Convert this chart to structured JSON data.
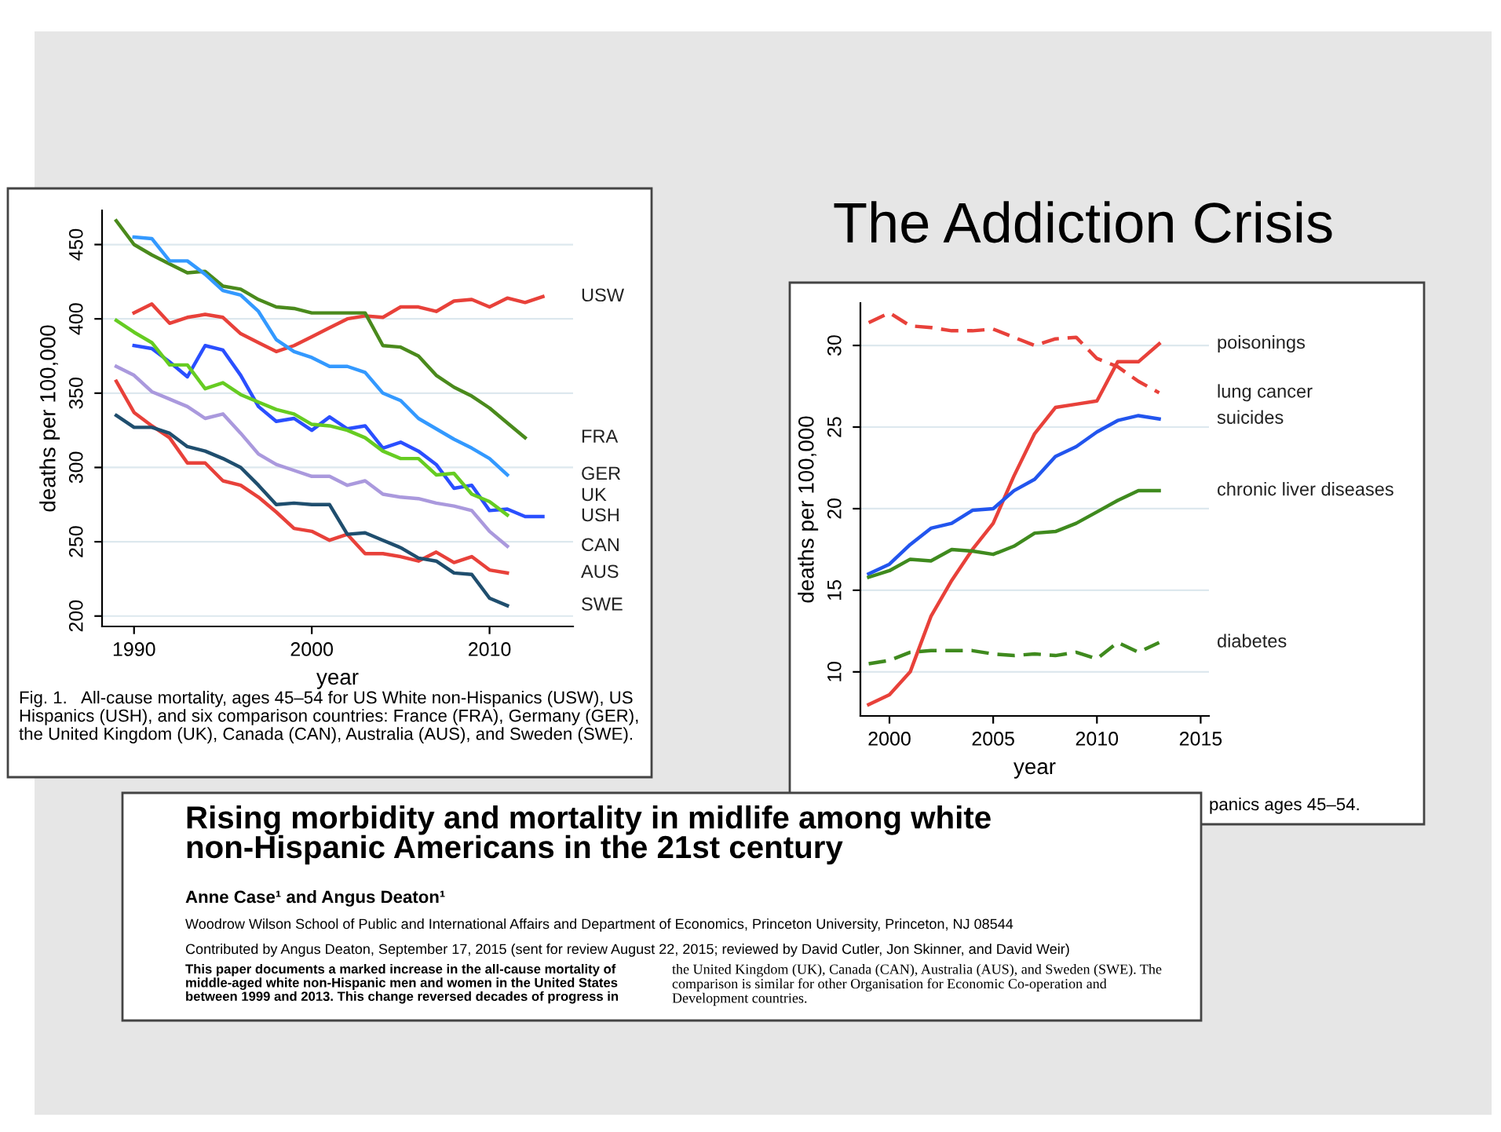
{
  "chart_data": [
    {
      "type": "line",
      "xlabel": "year",
      "ylabel": "deaths per 100,000",
      "xlim": [
        1988.2,
        2014.7
      ],
      "ylim": [
        193,
        473
      ],
      "xticks": [
        1990,
        2000,
        2010
      ],
      "yticks": [
        200,
        250,
        300,
        350,
        400,
        450
      ],
      "grid": "y",
      "legend": false,
      "marker": "none",
      "annotations": [
        "Fig. 1.   All-cause mortality, ages 45–54 for US White non-Hispanics (USW), US Hispanics (USH), and six comparison countries: France (FRA), Germany (GER), the United Kingdom (UK), Canada (CAN), Australia (AUS), and Sweden (SWE)."
      ],
      "series": [
        {
          "name": "USW",
          "color": "#e8413a",
          "x": [
            1990,
            1991,
            1992,
            1993,
            1994,
            1995,
            1996,
            1997,
            1998,
            1999,
            2000,
            2001,
            2002,
            2003,
            2004,
            2005,
            2006,
            2007,
            2008,
            2009,
            2010,
            2011,
            2012,
            2013
          ],
          "values": [
            404,
            410,
            397,
            401,
            403,
            401,
            390,
            384,
            378,
            382,
            388,
            394,
            400,
            402,
            401,
            408,
            408,
            405,
            412,
            413,
            408,
            414,
            411,
            415
          ]
        },
        {
          "name": "FRA",
          "color": "#4a8a1c",
          "x": [
            1989,
            1990,
            1991,
            1992,
            1993,
            1994,
            1995,
            1996,
            1997,
            1998,
            1999,
            2000,
            2001,
            2002,
            2003,
            2004,
            2005,
            2006,
            2007,
            2008,
            2009,
            2010,
            2011,
            2012
          ],
          "values": [
            466,
            450,
            443,
            437,
            431,
            432,
            422,
            420,
            413,
            408,
            407,
            404,
            404,
            404,
            404,
            382,
            381,
            375,
            362,
            354,
            348,
            340,
            330,
            320
          ]
        },
        {
          "name": "GER",
          "color": "#3399ff",
          "x": [
            1990,
            1991,
            1992,
            1993,
            1994,
            1995,
            1996,
            1997,
            1998,
            1999,
            2000,
            2001,
            2002,
            2003,
            2004,
            2005,
            2006,
            2007,
            2008,
            2009,
            2010,
            2011
          ],
          "values": [
            455,
            454,
            439,
            439,
            430,
            419,
            416,
            405,
            386,
            378,
            374,
            368,
            368,
            364,
            350,
            345,
            333,
            326,
            319,
            313,
            306,
            295
          ]
        },
        {
          "name": "USH",
          "color": "#2a4fff",
          "x": [
            1990,
            1991,
            1992,
            1993,
            1994,
            1995,
            1996,
            1997,
            1998,
            1999,
            2000,
            2001,
            2002,
            2003,
            2004,
            2005,
            2006,
            2007,
            2008,
            2009,
            2010,
            2011,
            2012,
            2013
          ],
          "values": [
            382,
            380,
            371,
            361,
            382,
            379,
            362,
            341,
            331,
            333,
            325,
            334,
            326,
            328,
            313,
            317,
            311,
            302,
            286,
            288,
            271,
            272,
            267,
            267
          ]
        },
        {
          "name": "UK",
          "color": "#66cc22",
          "x": [
            1989,
            1990,
            1991,
            1992,
            1993,
            1994,
            1995,
            1996,
            1997,
            1998,
            1999,
            2000,
            2001,
            2002,
            2003,
            2004,
            2005,
            2006,
            2007,
            2008,
            2009,
            2010,
            2011
          ],
          "values": [
            399,
            391,
            384,
            369,
            369,
            353,
            357,
            349,
            344,
            339,
            336,
            329,
            328,
            325,
            320,
            311,
            306,
            306,
            295,
            296,
            282,
            277,
            268
          ]
        },
        {
          "name": "CAN",
          "color": "#aa99dd",
          "x": [
            1989,
            1990,
            1991,
            1992,
            1993,
            1994,
            1995,
            1996,
            1997,
            1998,
            1999,
            2000,
            2001,
            2002,
            2003,
            2004,
            2005,
            2006,
            2007,
            2008,
            2009,
            2010,
            2011
          ],
          "values": [
            368,
            362,
            351,
            346,
            341,
            333,
            336,
            323,
            309,
            302,
            298,
            294,
            294,
            288,
            291,
            282,
            280,
            279,
            276,
            274,
            271,
            257,
            247
          ]
        },
        {
          "name": "AUS",
          "color": "#e8413a",
          "x": [
            1989,
            1990,
            1991,
            1992,
            1993,
            1994,
            1995,
            1996,
            1997,
            1998,
            1999,
            2000,
            2001,
            2002,
            2003,
            2004,
            2005,
            2006,
            2007,
            2008,
            2009,
            2010,
            2011
          ],
          "values": [
            358,
            337,
            328,
            320,
            303,
            303,
            291,
            288,
            280,
            270,
            259,
            257,
            251,
            255,
            242,
            242,
            240,
            237,
            243,
            236,
            240,
            231,
            229
          ]
        },
        {
          "name": "SWE",
          "color": "#1f4e6e",
          "x": [
            1989,
            1990,
            1991,
            1992,
            1993,
            1994,
            1995,
            1996,
            1997,
            1998,
            1999,
            2000,
            2001,
            2002,
            2003,
            2004,
            2005,
            2006,
            2007,
            2008,
            2009,
            2010,
            2011
          ],
          "values": [
            335,
            327,
            327,
            323,
            314,
            311,
            306,
            300,
            288,
            275,
            276,
            275,
            275,
            255,
            256,
            251,
            246,
            239,
            237,
            229,
            228,
            212,
            207
          ]
        }
      ]
    },
    {
      "type": "other",
      "title": "The Addiction Crisis"
    },
    {
      "type": "line",
      "xlabel": "year",
      "ylabel": "deaths per 100,000",
      "xlim": [
        1998.6,
        2015.4
      ],
      "ylim": [
        7.3,
        32.6
      ],
      "xticks": [
        2000,
        2005,
        2010,
        2015
      ],
      "yticks": [
        10,
        15,
        20,
        25,
        30
      ],
      "grid": "y",
      "legend": false,
      "marker": "none",
      "annotations": [
        "panics ages 45–54."
      ],
      "series": [
        {
          "name": "poisonings",
          "color": "#e8413a",
          "line_style": "solid",
          "x": [
            1999,
            2000,
            2001,
            2002,
            2003,
            2004,
            2005,
            2006,
            2007,
            2008,
            2009,
            2010,
            2011,
            2012,
            2013
          ],
          "values": [
            8.0,
            8.6,
            10.0,
            13.4,
            15.6,
            17.5,
            19.1,
            22.0,
            24.6,
            26.2,
            26.4,
            26.6,
            29.0,
            29.0,
            30.1
          ]
        },
        {
          "name": "lung cancer",
          "color": "#e8413a",
          "line_style": "dashed",
          "x": [
            1999,
            2000,
            2001,
            2002,
            2003,
            2004,
            2005,
            2006,
            2007,
            2008,
            2009,
            2010,
            2011,
            2012,
            2013
          ],
          "values": [
            31.4,
            32.0,
            31.2,
            31.1,
            30.9,
            30.9,
            31.0,
            30.5,
            30.0,
            30.4,
            30.5,
            29.2,
            28.7,
            27.8,
            27.1
          ]
        },
        {
          "name": "suicides",
          "color": "#2255ee",
          "line_style": "solid",
          "x": [
            1999,
            2000,
            2001,
            2002,
            2003,
            2004,
            2005,
            2006,
            2007,
            2008,
            2009,
            2010,
            2011,
            2012,
            2013
          ],
          "values": [
            16.0,
            16.6,
            17.8,
            18.8,
            19.1,
            19.9,
            20.0,
            21.1,
            21.8,
            23.2,
            23.8,
            24.7,
            25.4,
            25.7,
            25.5
          ]
        },
        {
          "name": "chronic liver diseases",
          "color": "#3f8a1e",
          "line_style": "solid",
          "x": [
            1999,
            2000,
            2001,
            2002,
            2003,
            2004,
            2005,
            2006,
            2007,
            2008,
            2009,
            2010,
            2011,
            2012,
            2013
          ],
          "values": [
            15.8,
            16.2,
            16.9,
            16.8,
            17.5,
            17.4,
            17.2,
            17.7,
            18.5,
            18.6,
            19.1,
            19.8,
            20.5,
            21.1,
            21.1
          ]
        },
        {
          "name": "diabetes",
          "color": "#3f8a1e",
          "line_style": "dashed",
          "x": [
            1999,
            2000,
            2001,
            2002,
            2003,
            2004,
            2005,
            2006,
            2007,
            2008,
            2009,
            2010,
            2011,
            2012,
            2013
          ],
          "values": [
            10.5,
            10.7,
            11.2,
            11.3,
            11.3,
            11.3,
            11.1,
            11.0,
            11.1,
            11.0,
            11.2,
            10.8,
            11.8,
            11.2,
            11.8
          ]
        }
      ]
    },
    {
      "type": "other",
      "title": "Rising morbidity and mortality in midlife among white non-Hispanic Americans in the 21st century",
      "annotations": [
        "Anne Case¹ and Angus Deaton¹",
        "Woodrow Wilson School of Public and International Affairs and Department of Economics, Princeton University, Princeton, NJ 08544",
        "Contributed by Angus Deaton, September 17, 2015 (sent for review August 22, 2015; reviewed by David Cutler, Jon Skinner, and David Weir)",
        "This paper documents a marked increase in the all-cause mortality of middle-aged white non-Hispanic men and women in the United States between 1999 and 2013. This change reversed decades of progress in",
        "the United Kingdom (UK), Canada (CAN), Australia (AUS), and Sweden (SWE). The comparison is similar for other Organisation for Economic Co-operation and Development countries."
      ]
    }
  ]
}
